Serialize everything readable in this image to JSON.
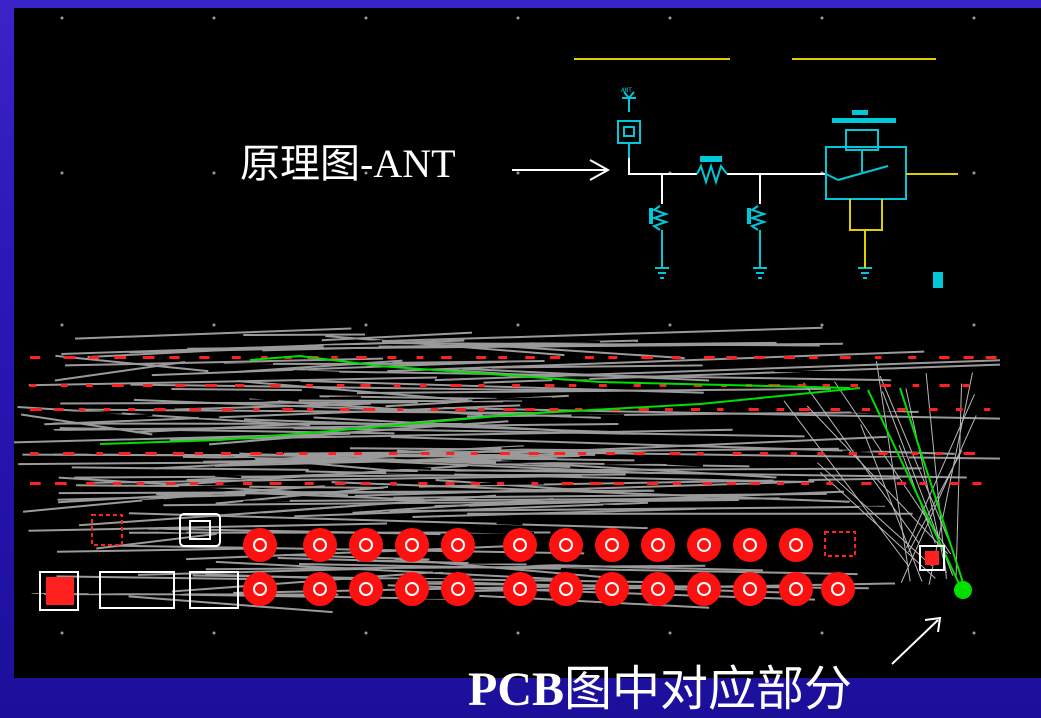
{
  "labels": {
    "schematic_pointer": "原理图-ANT",
    "pcb_pointer_prefix": "PCB",
    "pcb_pointer_suffix": "图中对应部分"
  },
  "colors": {
    "slide_background": "#2a17b8",
    "canvas_background": "#000000",
    "schematic_wire": "#ffffff",
    "component": "#00c8d8",
    "bus_line": "#e0d000",
    "pcb_trace": "#9a9a9a",
    "pcb_pad": "#ff0000",
    "routed_net": "#00e000",
    "label_text": "#ffffff"
  },
  "icons": [
    "arrow-right-icon",
    "arrow-diagonal-icon",
    "antenna-icon",
    "ground-icon",
    "resistor-icon",
    "relay-switch-icon",
    "round-pad-icon",
    "square-pad-icon"
  ]
}
